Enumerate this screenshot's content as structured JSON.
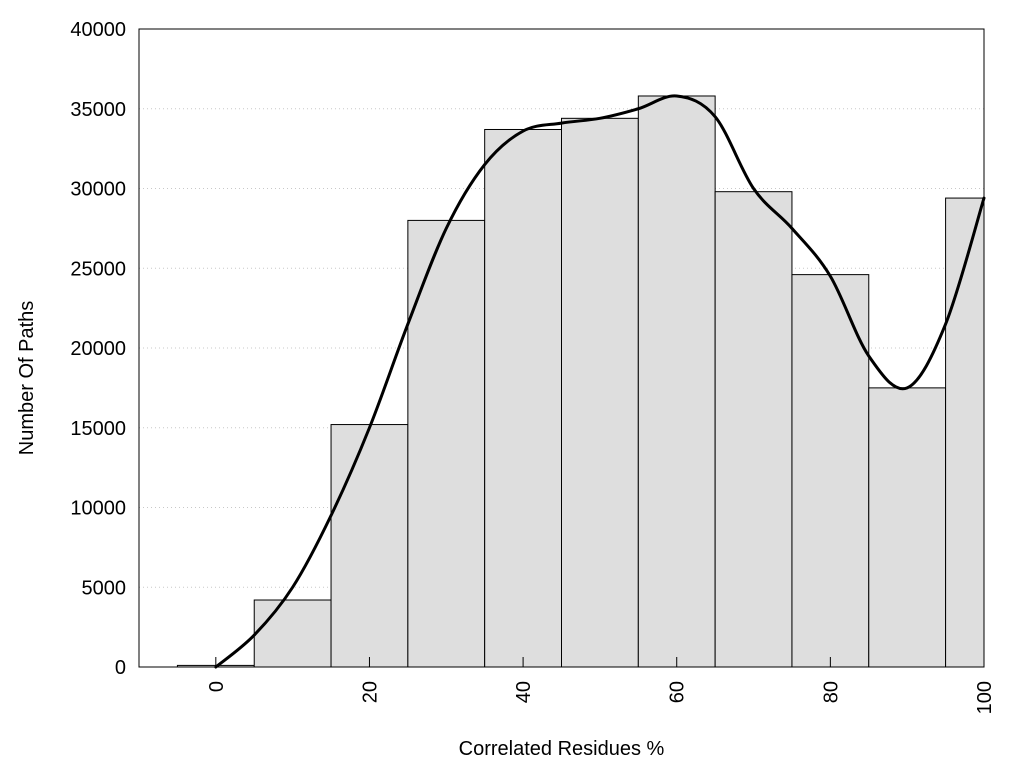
{
  "chart_data": {
    "type": "bar",
    "xlabel": "Correlated Residues %",
    "ylabel": "Number Of Paths",
    "xlim": [
      -10,
      100
    ],
    "ylim": [
      0,
      40000
    ],
    "x_ticks": [
      0,
      20,
      40,
      60,
      80,
      100
    ],
    "y_ticks": [
      0,
      5000,
      10000,
      15000,
      20000,
      25000,
      30000,
      35000,
      40000
    ],
    "grid": "horizontal-dotted",
    "legend": "none",
    "bins": [
      {
        "start": -5,
        "end": 5,
        "value": 100
      },
      {
        "start": 5,
        "end": 15,
        "value": 4200
      },
      {
        "start": 15,
        "end": 25,
        "value": 15200
      },
      {
        "start": 25,
        "end": 35,
        "value": 28000
      },
      {
        "start": 35,
        "end": 45,
        "value": 33700
      },
      {
        "start": 45,
        "end": 55,
        "value": 34400
      },
      {
        "start": 55,
        "end": 65,
        "value": 35800
      },
      {
        "start": 65,
        "end": 75,
        "value": 29800
      },
      {
        "start": 75,
        "end": 85,
        "value": 24600
      },
      {
        "start": 85,
        "end": 95,
        "value": 17500
      },
      {
        "start": 95,
        "end": 100,
        "value": 29400
      }
    ],
    "smooth_curve": {
      "x": [
        0,
        5,
        10,
        15,
        20,
        25,
        30,
        35,
        40,
        45,
        50,
        55,
        60,
        65,
        70,
        75,
        80,
        85,
        90,
        95,
        100
      ],
      "y": [
        0,
        2000,
        5000,
        9500,
        15000,
        21500,
        27500,
        31500,
        33600,
        34100,
        34400,
        35000,
        35800,
        34500,
        30000,
        27500,
        24500,
        19500,
        17500,
        21500,
        29400
      ]
    }
  }
}
